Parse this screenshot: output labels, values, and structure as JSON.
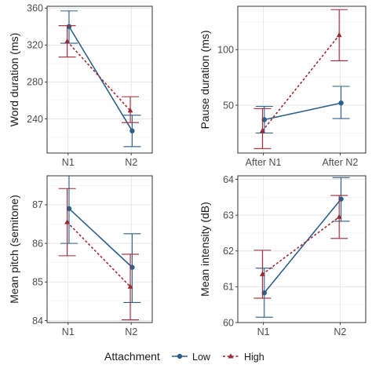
{
  "chart_data": [
    {
      "type": "line",
      "ylabel": "Word duration (ms)",
      "categories": [
        "N1",
        "N2"
      ],
      "ylim": [
        203,
        362
      ],
      "yticks": [
        240,
        280,
        320,
        360
      ],
      "grid": true,
      "series": [
        {
          "name": "Low",
          "values": [
            340,
            227
          ],
          "err_low": [
            322,
            210
          ],
          "err_high": [
            357,
            244
          ]
        },
        {
          "name": "High",
          "values": [
            324,
            249
          ],
          "err_low": [
            307,
            236
          ],
          "err_high": [
            341,
            264
          ]
        }
      ]
    },
    {
      "type": "line",
      "ylabel": "Pause duration (ms)",
      "categories": [
        "After N1",
        "After N2"
      ],
      "ylim": [
        7,
        139
      ],
      "yticks": [
        50,
        100
      ],
      "grid": true,
      "series": [
        {
          "name": "Low",
          "values": [
            37,
            52
          ],
          "err_low": [
            25,
            38
          ],
          "err_high": [
            49,
            67
          ]
        },
        {
          "name": "High",
          "values": [
            27,
            113
          ],
          "err_low": [
            11,
            90
          ],
          "err_high": [
            47,
            136
          ]
        }
      ]
    },
    {
      "type": "line",
      "ylabel": "Mean pitch (semitone)",
      "categories": [
        "N1",
        "N2"
      ],
      "ylim": [
        83.95,
        87.75
      ],
      "yticks": [
        84,
        85,
        86,
        87
      ],
      "grid": true,
      "series": [
        {
          "name": "Low",
          "values": [
            86.9,
            85.38
          ],
          "err_low": [
            86.0,
            84.47
          ],
          "err_high": [
            87.75,
            86.25
          ]
        },
        {
          "name": "High",
          "values": [
            86.55,
            84.88
          ],
          "err_low": [
            85.68,
            84.02
          ],
          "err_high": [
            87.42,
            85.72
          ]
        }
      ]
    },
    {
      "type": "line",
      "ylabel": "Mean intensity (dB)",
      "categories": [
        "N1",
        "N2"
      ],
      "ylim": [
        60.0,
        64.1
      ],
      "yticks": [
        60,
        61,
        62,
        63,
        64
      ],
      "grid": true,
      "series": [
        {
          "name": "Low",
          "values": [
            60.83,
            63.45
          ],
          "err_low": [
            60.15,
            62.83
          ],
          "err_high": [
            61.52,
            64.05
          ]
        },
        {
          "name": "High",
          "values": [
            61.35,
            62.95
          ],
          "err_low": [
            60.68,
            62.35
          ],
          "err_high": [
            62.02,
            63.55
          ]
        }
      ]
    }
  ],
  "legend": {
    "title": "Attachment",
    "placement": "bottom",
    "items": [
      {
        "label": "Low",
        "color": "#2e5f8a",
        "marker": "circle",
        "line": "solid"
      },
      {
        "label": "High",
        "color": "#9b2a35",
        "marker": "triangle",
        "line": "dashed"
      }
    ]
  },
  "colors": {
    "low": "#2e5f8a",
    "high": "#9b2a35",
    "grid_major": "#e3e3e3",
    "grid_minor": "#f2f2f2",
    "border": "#333333"
  }
}
